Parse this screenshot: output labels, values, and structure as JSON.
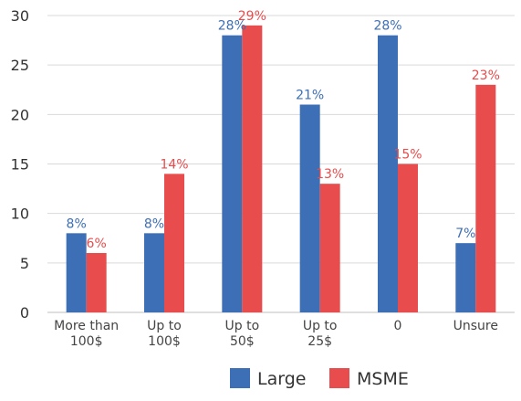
{
  "chart_data": {
    "type": "bar",
    "categories": [
      [
        "More than",
        "100$"
      ],
      [
        "Up to",
        "100$"
      ],
      [
        "Up to",
        "50$"
      ],
      [
        "Up to",
        "25$"
      ],
      [
        "0"
      ],
      [
        "Unsure"
      ]
    ],
    "series": [
      {
        "name": "Large",
        "color": "#3d6fb6",
        "values": [
          8,
          8,
          28,
          21,
          28,
          7
        ],
        "labels": [
          "8%",
          "8%",
          "28%",
          "21%",
          "28%",
          "7%"
        ]
      },
      {
        "name": "MSME",
        "color": "#e84c4c",
        "values": [
          6,
          14,
          29,
          13,
          15,
          23
        ],
        "labels": [
          "6%",
          "14%",
          "29%",
          "13%",
          "15%",
          "23%"
        ]
      }
    ],
    "yticks": [
      0,
      5,
      10,
      15,
      20,
      25,
      30
    ],
    "ylim": [
      0,
      30
    ],
    "grid": true,
    "legend_position": "bottom-center",
    "title": "",
    "xlabel": "",
    "ylabel": ""
  }
}
